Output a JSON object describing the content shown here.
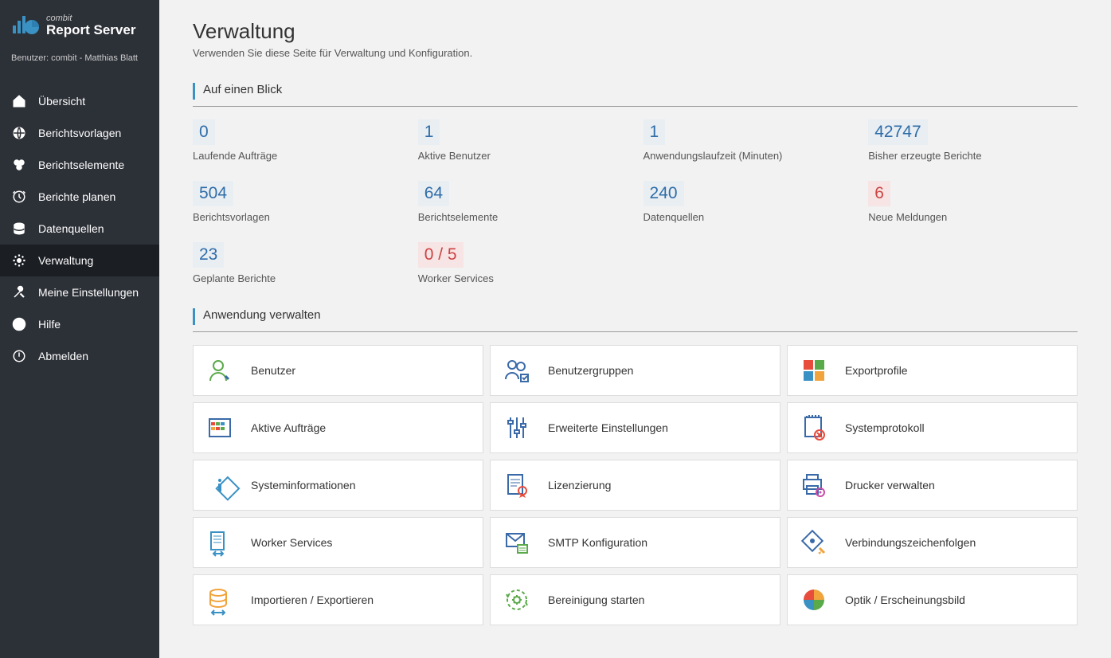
{
  "brand": "combit",
  "product": "Report Server",
  "user_prefix": "Benutzer:",
  "user_name": "combit - Matthias Blatt",
  "nav": [
    {
      "label": "Übersicht",
      "icon": "home"
    },
    {
      "label": "Berichtsvorlagen",
      "icon": "globe"
    },
    {
      "label": "Berichtselemente",
      "icon": "group"
    },
    {
      "label": "Berichte planen",
      "icon": "clock"
    },
    {
      "label": "Datenquellen",
      "icon": "db"
    },
    {
      "label": "Verwaltung",
      "icon": "gear",
      "active": true
    },
    {
      "label": "Meine Einstellungen",
      "icon": "tools"
    },
    {
      "label": "Hilfe",
      "icon": "help"
    },
    {
      "label": "Abmelden",
      "icon": "power"
    }
  ],
  "page": {
    "title": "Verwaltung",
    "subtitle": "Verwenden Sie diese Seite für Verwaltung und Konfiguration.",
    "section1": "Auf einen Blick",
    "section2": "Anwendung verwalten"
  },
  "stats": [
    {
      "value": "0",
      "label": "Laufende Aufträge"
    },
    {
      "value": "1",
      "label": "Aktive Benutzer"
    },
    {
      "value": "1",
      "label": "Anwendungslaufzeit (Minuten)"
    },
    {
      "value": "42747",
      "label": "Bisher erzeugte Berichte"
    },
    {
      "value": "504",
      "label": "Berichtsvorlagen"
    },
    {
      "value": "64",
      "label": "Berichtselemente"
    },
    {
      "value": "240",
      "label": "Datenquellen"
    },
    {
      "value": "6",
      "label": "Neue Meldungen",
      "alert": true
    },
    {
      "value": "23",
      "label": "Geplante Berichte"
    },
    {
      "value": "0 / 5",
      "label": "Worker Services",
      "alert": true
    }
  ],
  "cards": [
    {
      "label": "Benutzer",
      "icon": "user"
    },
    {
      "label": "Benutzergruppen",
      "icon": "usergroup"
    },
    {
      "label": "Exportprofile",
      "icon": "grid4"
    },
    {
      "label": "Aktive Aufträge",
      "icon": "calendar"
    },
    {
      "label": "Erweiterte Einstellungen",
      "icon": "sliders"
    },
    {
      "label": "Systemprotokoll",
      "icon": "syslog"
    },
    {
      "label": "Systeminformationen",
      "icon": "info"
    },
    {
      "label": "Lizenzierung",
      "icon": "license"
    },
    {
      "label": "Drucker verwalten",
      "icon": "printer"
    },
    {
      "label": "Worker Services",
      "icon": "worker"
    },
    {
      "label": "SMTP Konfiguration",
      "icon": "smtp"
    },
    {
      "label": "Verbindungszeichenfolgen",
      "icon": "connstr"
    },
    {
      "label": "Importieren / Exportieren",
      "icon": "impexp"
    },
    {
      "label": "Bereinigung starten",
      "icon": "cleanup"
    },
    {
      "label": "Optik / Erscheinungsbild",
      "icon": "theme"
    }
  ]
}
